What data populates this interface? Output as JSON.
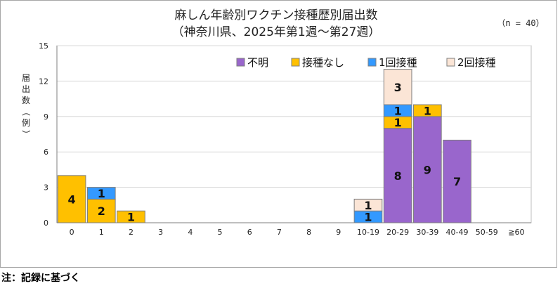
{
  "chart_data": {
    "type": "bar",
    "stacked": true,
    "title": "麻しん年齢別ワクチン接種歴別届出数",
    "subtitle": "（神奈川県、2025年第1週〜第27週）",
    "annotation": "（n = 40）",
    "xlabel": "",
    "ylabel": "届出数（例）",
    "ylim": [
      0,
      15
    ],
    "yticks": [
      0,
      3,
      6,
      9,
      12,
      15
    ],
    "grid": true,
    "legend_position": "top-right",
    "categories": [
      "0",
      "1",
      "2",
      "3",
      "4",
      "5",
      "6",
      "7",
      "8",
      "9",
      "10-19",
      "20-29",
      "30-39",
      "40-49",
      "50-59",
      "≧60"
    ],
    "series": [
      {
        "name": "不明",
        "color": "#9966CC",
        "values": [
          0,
          0,
          0,
          0,
          0,
          0,
          0,
          0,
          0,
          0,
          0,
          8,
          9,
          7,
          0,
          0
        ]
      },
      {
        "name": "接種なし",
        "color": "#FFC000",
        "values": [
          4,
          2,
          1,
          0,
          0,
          0,
          0,
          0,
          0,
          0,
          0,
          1,
          1,
          0,
          0,
          0
        ]
      },
      {
        "name": "1回接種",
        "color": "#3399FF",
        "values": [
          0,
          1,
          0,
          0,
          0,
          0,
          0,
          0,
          0,
          0,
          1,
          1,
          0,
          0,
          0,
          0
        ]
      },
      {
        "name": "2回接種",
        "color": "#FBE5D6",
        "values": [
          0,
          0,
          0,
          0,
          0,
          0,
          0,
          0,
          0,
          0,
          1,
          3,
          0,
          0,
          0,
          0
        ]
      }
    ]
  },
  "footnote": "注：記録に基づく"
}
